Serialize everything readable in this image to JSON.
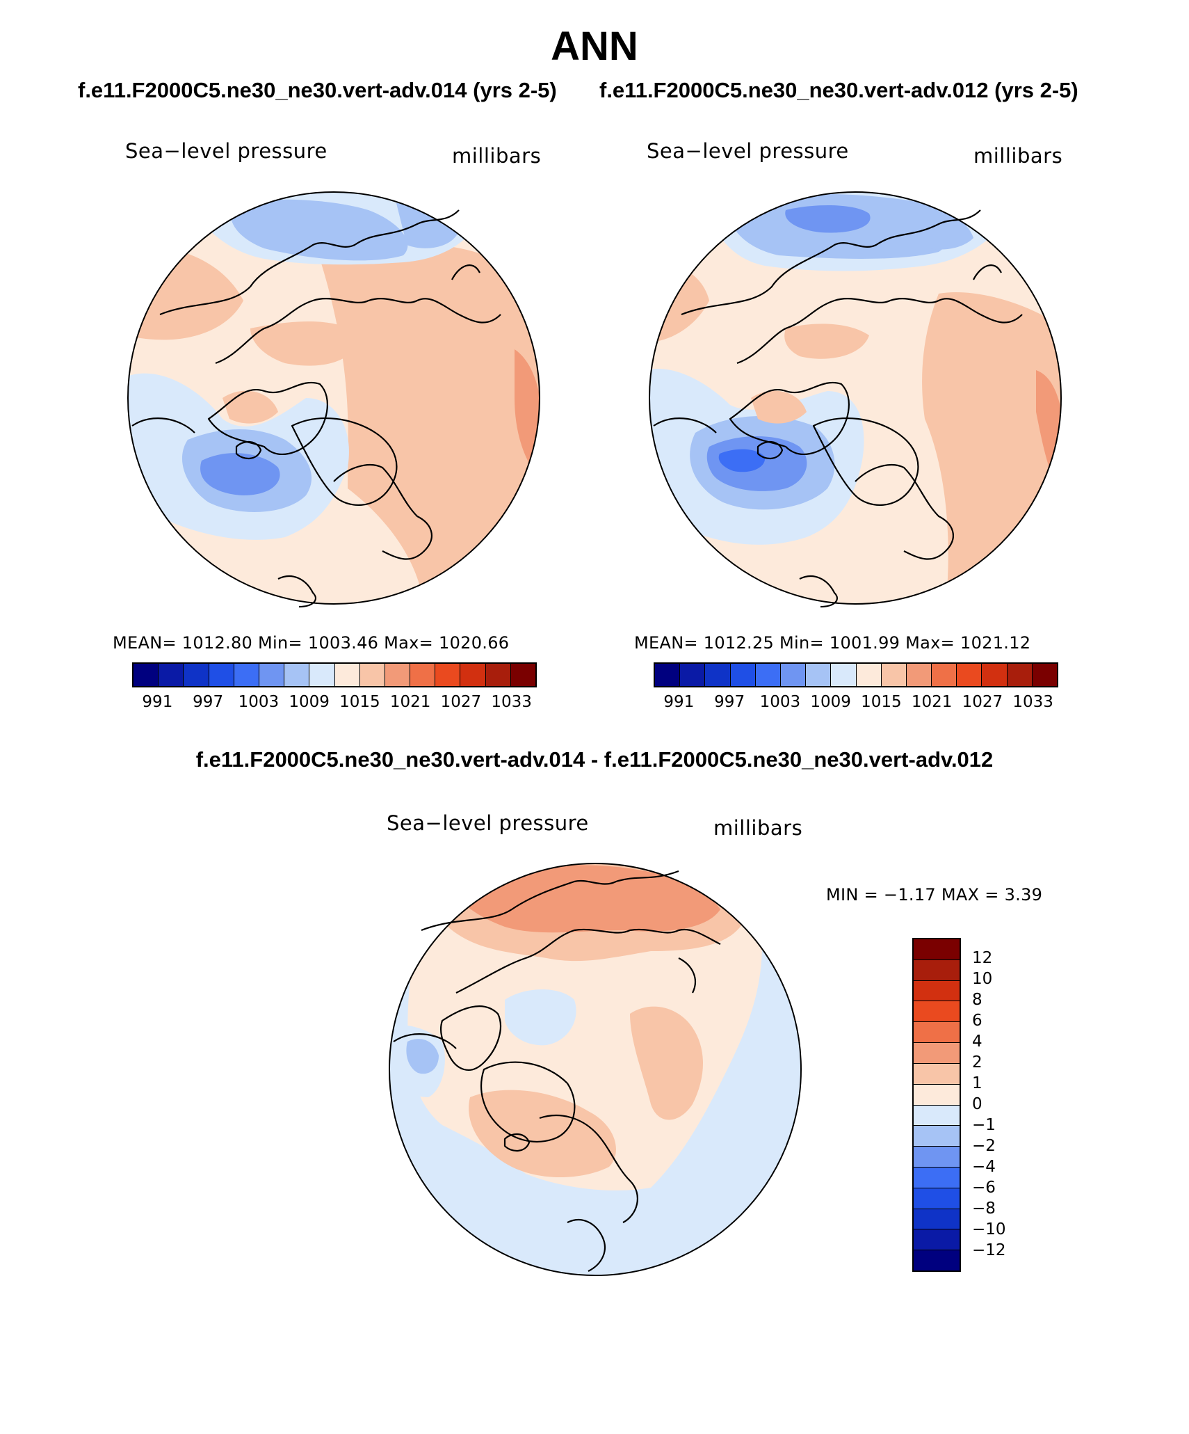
{
  "figure": {
    "title": "ANN",
    "subtitle_left": "f.e11.F2000C5.ne30_ne30.vert-adv.014 (yrs 2-5)",
    "subtitle_right": "f.e11.F2000C5.ne30_ne30.vert-adv.012 (yrs 2-5)",
    "diff_title": "f.e11.F2000C5.ne30_ne30.vert-adv.014 - f.e11.F2000C5.ne30_ne30.vert-adv.012"
  },
  "panels": [
    {
      "variable": "Sea−level pressure",
      "units": "millibars",
      "stats": "MEAN=  1012.80   Min=  1003.46   Max=  1020.66"
    },
    {
      "variable": "Sea−level pressure",
      "units": "millibars",
      "stats": "MEAN=  1012.25   Min=  1001.99   Max=  1021.12"
    },
    {
      "variable": "Sea−level pressure",
      "units": "millibars",
      "stats": "MIN =   −1.17  MAX =     3.39"
    }
  ],
  "colorbar_abs": {
    "colors": [
      "#00007f",
      "#0a1aa6",
      "#0f33c7",
      "#1f4fe6",
      "#3c6ef5",
      "#6f95f2",
      "#a6c3f5",
      "#d9e9fb",
      "#fdeadb",
      "#f8c5a8",
      "#f29a78",
      "#ef7047",
      "#ea4a1f",
      "#d23010",
      "#a81e0c",
      "#7a0000"
    ],
    "labels": [
      "991",
      "997",
      "1003",
      "1009",
      "1015",
      "1021",
      "1027",
      "1033"
    ]
  },
  "colorbar_diff": {
    "colors": [
      "#7a0000",
      "#a81e0c",
      "#d23010",
      "#ea4a1f",
      "#ef7047",
      "#f29a78",
      "#f8c5a8",
      "#fdeadb",
      "#d9e9fb",
      "#a6c3f5",
      "#6f95f2",
      "#3c6ef5",
      "#1f4fe6",
      "#0f33c7",
      "#0a1aa6",
      "#00007f"
    ],
    "labels": [
      "12",
      "10",
      "8",
      "6",
      "4",
      "2",
      "1",
      "0",
      "−1",
      "−2",
      "−4",
      "−6",
      "−8",
      "−10",
      "−12"
    ]
  },
  "map_colors": {
    "ocean_pale_blue": "#d9e9fb",
    "light_blue": "#a6c3f5",
    "mid_blue": "#6f95f2",
    "deep_blue": "#3c6ef5",
    "pale_orange": "#fdeadb",
    "salmon": "#f8c5a8",
    "orange": "#f29a78"
  }
}
